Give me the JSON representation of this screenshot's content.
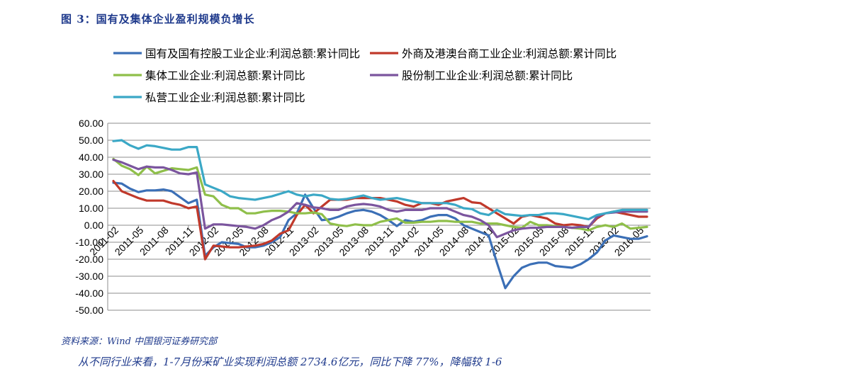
{
  "figure_title": "图  3：国有及集体企业盈利规模负增长",
  "source": "资料来源：Wind 中国银河证券研究部",
  "body_text_partial": "从不同行业来看，1-7月份采矿业实现利润总额 2734.6亿元，同比下降 77%，降幅较 1-6",
  "chart_data": {
    "type": "line",
    "title": "",
    "xlabel": "",
    "ylabel": "",
    "ylim": [
      -50,
      60
    ],
    "yticks": [
      "60.00",
      "50.00",
      "40.00",
      "30.00",
      "20.00",
      "10.00",
      "0.00",
      "-10.00",
      "-20.00",
      "-30.00",
      "-40.00",
      "-50.00"
    ],
    "xtick_labels": [
      "2011-02",
      "2011-05",
      "2011-08",
      "2011-11",
      "2012-02",
      "2012-05",
      "2012-08",
      "2012-11",
      "2013-02",
      "2013-05",
      "2013-08",
      "2013-11",
      "2014-02",
      "2014-05",
      "2014-08",
      "2014-11",
      "2015-02",
      "2015-05",
      "2015-08",
      "2015-11",
      "2016-02",
      "2016-05"
    ],
    "grid": true,
    "legend_position": "top",
    "colors": [
      "#3b6fb6",
      "#c0392b",
      "#8fbf4a",
      "#7b559e",
      "#3ba8c6"
    ],
    "series": [
      {
        "name": "国有及国有控股工业企业:利润总额:累计同比",
        "values": [
          25,
          24.5,
          21.5,
          19.5,
          20.5,
          20.5,
          21,
          20,
          16.5,
          13,
          15,
          -18,
          -13,
          -10,
          -10.5,
          -11,
          -13,
          -13,
          -12,
          -10,
          -7,
          3,
          7,
          18,
          10,
          3,
          3.5,
          5,
          7,
          8.5,
          9,
          8,
          6,
          3,
          -0.5,
          3,
          2,
          3,
          5,
          6,
          6,
          4,
          0,
          -2,
          -4,
          -6,
          -22,
          -37,
          -30,
          -25,
          -23,
          -22,
          -22,
          -24,
          -24.5,
          -25,
          -23,
          -20,
          -16,
          -9,
          -6,
          -7,
          -8,
          -8,
          -6.5
        ]
      },
      {
        "name": "外商及港澳台商工业企业:利润总额:累计同比",
        "values": [
          26,
          20,
          18,
          16,
          14.5,
          14.5,
          14.5,
          13,
          12,
          10,
          11,
          -20,
          -12,
          -12.5,
          -13,
          -13,
          -12.5,
          -12,
          -11,
          -9,
          -5,
          -3,
          6,
          12,
          7,
          11,
          15,
          15,
          15,
          16,
          16,
          16,
          16,
          15,
          14,
          12,
          11,
          13,
          13,
          12,
          14,
          15,
          16,
          13.5,
          13,
          10,
          7,
          4,
          1,
          5,
          6,
          5,
          4,
          1,
          0,
          0.5,
          0,
          -1,
          4,
          7,
          8,
          7,
          6,
          5,
          5
        ]
      },
      {
        "name": "集体工业企业:利润总额:累计同比",
        "values": [
          39,
          35,
          33,
          29.5,
          34.5,
          30.5,
          32,
          33.5,
          33,
          32.5,
          34,
          18,
          17,
          12,
          10,
          10,
          7,
          7,
          8,
          8.5,
          8.5,
          8,
          7,
          7,
          7.5,
          6.5,
          1,
          0,
          -0.5,
          0.5,
          0,
          0,
          2,
          3,
          4,
          1.5,
          1.5,
          2,
          2,
          2.5,
          2.5,
          2,
          2,
          2,
          1,
          1,
          1,
          0,
          -1,
          -1.5,
          2,
          0,
          0,
          -0.5,
          -1,
          -1.5,
          -2,
          -3,
          -1,
          0,
          -1,
          1,
          -2,
          -1.5,
          -1
        ]
      },
      {
        "name": "股份制工业企业:利润总额:累计同比",
        "values": [
          38.5,
          37,
          35,
          33,
          34.5,
          34,
          34,
          32.5,
          30.5,
          30,
          31,
          -2,
          0.5,
          0.5,
          0,
          -0.5,
          -1,
          -2,
          0,
          3,
          5,
          8,
          13,
          12,
          10.5,
          10,
          9,
          9,
          11,
          12,
          12.5,
          12,
          11,
          9,
          8,
          9,
          9,
          9,
          10,
          10,
          10,
          8,
          6,
          5,
          3,
          0,
          -7,
          -5,
          -3,
          -2,
          -1.5,
          -1.5,
          -1,
          -1,
          -1,
          -1.5,
          -1,
          -1,
          5,
          7,
          7.5,
          8,
          8,
          8,
          8
        ]
      },
      {
        "name": "私营工业企业:利润总额:累计同比",
        "values": [
          49.5,
          50,
          47,
          45,
          47,
          46.5,
          45.5,
          44.5,
          44.5,
          46,
          46,
          24,
          22,
          20,
          17,
          16,
          15.5,
          15,
          16,
          17,
          18.5,
          20,
          18,
          17,
          18,
          17.5,
          15.5,
          15,
          15.5,
          16.5,
          17.5,
          16,
          15,
          15.5,
          16,
          15,
          14,
          13,
          13,
          13,
          13,
          12,
          10,
          9.5,
          7,
          6,
          9,
          6.5,
          6,
          5.5,
          6,
          6,
          7,
          7,
          6.5,
          5.5,
          4.5,
          3.5,
          6,
          7,
          8,
          9,
          9,
          9,
          9
        ]
      }
    ]
  }
}
